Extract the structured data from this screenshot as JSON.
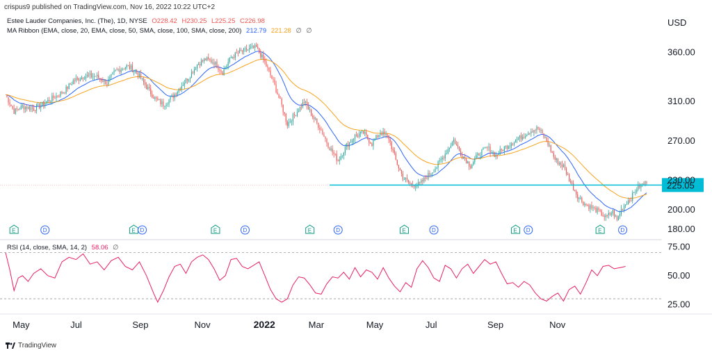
{
  "header": {
    "published": "crispus9 published on TradingView.com, Nov 16, 2022 10:22 UTC+2"
  },
  "legend": {
    "symbol": "Estee Lauder Companies, Inc. (The), 1D, NYSE",
    "o": "O228.42",
    "h": "H230.25",
    "l": "L225.25",
    "c": "C226.98",
    "ma_label": "MA Ribbon (EMA, close, 20, EMA, close, 50, SMA, close, 100, SMA, close, 200)",
    "ma_v1": "212.79",
    "ma_v2": "221.28",
    "ma_v3": "∅",
    "ma_v4": "∅",
    "rsi_label": "RSI (14, close, SMA, 14, 2)",
    "rsi_v1": "58.06",
    "rsi_v2": "∅"
  },
  "footer": {
    "brand": "TradingView"
  },
  "colors": {
    "up": "#26a69a",
    "down": "#ef5350",
    "ema20": "#2962ff",
    "ema50": "#f7a21b",
    "rsi": "#e91e63",
    "support": "#00bcd4",
    "axis_text": "#131722",
    "grid_dash": "#9598a1"
  },
  "chart_data": [
    {
      "type": "candlestick",
      "title": "Estee Lauder Companies, Inc. (The), 1D, NYSE",
      "currency": "USD",
      "ylim": [
        173,
        378
      ],
      "y_ticks": [
        "360.00",
        "310.00",
        "270.00",
        "230.00",
        "200.00",
        "180.00"
      ],
      "y_tick_values": [
        360,
        310,
        270,
        230,
        200,
        180
      ],
      "x_ticks": [
        "May",
        "Jul",
        "Sep",
        "Nov",
        "2022",
        "Mar",
        "May",
        "Jul",
        "Sep",
        "Nov"
      ],
      "x_tick_days": [
        5,
        46,
        90,
        134,
        176,
        215,
        256,
        298,
        342,
        386
      ],
      "x_range_days": [
        0,
        412
      ],
      "price_label": "225.05",
      "price_label_value": 225.05,
      "support_level": 225.05,
      "support_from_day": 230,
      "price_anchors": [
        [
          0,
          317,
          0
        ],
        [
          6,
          300,
          1
        ],
        [
          12,
          305,
          0
        ],
        [
          20,
          303,
          0
        ],
        [
          26,
          307,
          0
        ],
        [
          34,
          314,
          1
        ],
        [
          42,
          321,
          0
        ],
        [
          48,
          331,
          0
        ],
        [
          56,
          336,
          0
        ],
        [
          64,
          336,
          1
        ],
        [
          72,
          329,
          0
        ],
        [
          78,
          341,
          0
        ],
        [
          86,
          346,
          0
        ],
        [
          92,
          342,
          1
        ],
        [
          100,
          325,
          0
        ],
        [
          106,
          313,
          0
        ],
        [
          112,
          307,
          1
        ],
        [
          118,
          314,
          0
        ],
        [
          124,
          325,
          0
        ],
        [
          130,
          335,
          0
        ],
        [
          136,
          348,
          0
        ],
        [
          142,
          353,
          1
        ],
        [
          148,
          350,
          0
        ],
        [
          154,
          340,
          0
        ],
        [
          160,
          355,
          0
        ],
        [
          166,
          360,
          1
        ],
        [
          172,
          363,
          0
        ],
        [
          178,
          365,
          0
        ],
        [
          184,
          350,
          0
        ],
        [
          190,
          330,
          0
        ],
        [
          196,
          306,
          0
        ],
        [
          200,
          287,
          1
        ],
        [
          206,
          298,
          0
        ],
        [
          212,
          310,
          0
        ],
        [
          218,
          295,
          0
        ],
        [
          224,
          281,
          1
        ],
        [
          230,
          263,
          0
        ],
        [
          236,
          250,
          0
        ],
        [
          242,
          265,
          0
        ],
        [
          248,
          275,
          0
        ],
        [
          254,
          278,
          1
        ],
        [
          260,
          267,
          0
        ],
        [
          266,
          279,
          0
        ],
        [
          272,
          273,
          0
        ],
        [
          277,
          250,
          0
        ],
        [
          282,
          233,
          1
        ],
        [
          288,
          225,
          0
        ],
        [
          294,
          226,
          0
        ],
        [
          300,
          235,
          0
        ],
        [
          306,
          244,
          0
        ],
        [
          312,
          257,
          1
        ],
        [
          318,
          271,
          0
        ],
        [
          324,
          255,
          0
        ],
        [
          330,
          245,
          0
        ],
        [
          336,
          257,
          0
        ],
        [
          342,
          263,
          1
        ],
        [
          348,
          255,
          0
        ],
        [
          354,
          263,
          0
        ],
        [
          360,
          269,
          0
        ],
        [
          366,
          274,
          0
        ],
        [
          372,
          280,
          1
        ],
        [
          378,
          283,
          0
        ],
        [
          384,
          270,
          0
        ],
        [
          390,
          251,
          0
        ],
        [
          396,
          244,
          0
        ],
        [
          401,
          228,
          1
        ],
        [
          406,
          214,
          0
        ],
        [
          411,
          206,
          0
        ],
        [
          416,
          202,
          0
        ],
        [
          421,
          198,
          0
        ],
        [
          426,
          192,
          0
        ],
        [
          431,
          198,
          1
        ],
        [
          434,
          189,
          0
        ],
        [
          437,
          200,
          0
        ],
        [
          441,
          208,
          0
        ],
        [
          444,
          212,
          0
        ],
        [
          448,
          222,
          1
        ],
        [
          452,
          226,
          0
        ],
        [
          455,
          227,
          0
        ]
      ],
      "ema_series": [
        "EMA 20",
        "EMA 50"
      ],
      "events": [
        {
          "label": "E",
          "day": 6
        },
        {
          "label": "D",
          "day": 28
        },
        {
          "label": "E",
          "day": 91
        },
        {
          "label": "D",
          "day": 97
        },
        {
          "label": "E",
          "day": 149
        },
        {
          "label": "D",
          "day": 170
        },
        {
          "label": "E",
          "day": 216
        },
        {
          "label": "D",
          "day": 236
        },
        {
          "label": "E",
          "day": 283
        },
        {
          "label": "D",
          "day": 304
        },
        {
          "label": "E",
          "day": 362
        },
        {
          "label": "D",
          "day": 371
        },
        {
          "label": "E",
          "day": 422
        },
        {
          "label": "D",
          "day": 438
        }
      ]
    },
    {
      "type": "line",
      "title": "RSI (14, close, SMA, 14, 2)",
      "ylim": [
        18,
        80
      ],
      "y_ticks": [
        "75.00",
        "50.00",
        "25.00"
      ],
      "y_tick_values": [
        75,
        50,
        25
      ],
      "bands": [
        70,
        30
      ],
      "rsi_anchors": [
        [
          0,
          70
        ],
        [
          3,
          55
        ],
        [
          6,
          37
        ],
        [
          9,
          48
        ],
        [
          12,
          50
        ],
        [
          16,
          45
        ],
        [
          20,
          52
        ],
        [
          25,
          56
        ],
        [
          30,
          50
        ],
        [
          35,
          48
        ],
        [
          40,
          62
        ],
        [
          45,
          66
        ],
        [
          50,
          64
        ],
        [
          55,
          69
        ],
        [
          60,
          60
        ],
        [
          65,
          62
        ],
        [
          70,
          55
        ],
        [
          75,
          63
        ],
        [
          80,
          66
        ],
        [
          85,
          58
        ],
        [
          90,
          55
        ],
        [
          95,
          62
        ],
        [
          100,
          50
        ],
        [
          105,
          35
        ],
        [
          108,
          27
        ],
        [
          112,
          37
        ],
        [
          116,
          49
        ],
        [
          120,
          58
        ],
        [
          124,
          60
        ],
        [
          128,
          52
        ],
        [
          132,
          62
        ],
        [
          136,
          66
        ],
        [
          140,
          68
        ],
        [
          144,
          64
        ],
        [
          148,
          56
        ],
        [
          152,
          46
        ],
        [
          156,
          50
        ],
        [
          160,
          64
        ],
        [
          164,
          65
        ],
        [
          168,
          58
        ],
        [
          172,
          56
        ],
        [
          176,
          59
        ],
        [
          180,
          62
        ],
        [
          184,
          50
        ],
        [
          188,
          38
        ],
        [
          192,
          30
        ],
        [
          196,
          27
        ],
        [
          200,
          30
        ],
        [
          204,
          42
        ],
        [
          208,
          49
        ],
        [
          212,
          48
        ],
        [
          216,
          42
        ],
        [
          220,
          35
        ],
        [
          224,
          34
        ],
        [
          228,
          43
        ],
        [
          232,
          49
        ],
        [
          236,
          48
        ],
        [
          240,
          53
        ],
        [
          244,
          47
        ],
        [
          248,
          57
        ],
        [
          252,
          49
        ],
        [
          256,
          55
        ],
        [
          260,
          53
        ],
        [
          264,
          47
        ],
        [
          268,
          57
        ],
        [
          272,
          48
        ],
        [
          276,
          41
        ],
        [
          280,
          36
        ],
        [
          284,
          44
        ],
        [
          288,
          40
        ],
        [
          292,
          56
        ],
        [
          296,
          63
        ],
        [
          300,
          57
        ],
        [
          304,
          48
        ],
        [
          308,
          45
        ],
        [
          312,
          59
        ],
        [
          316,
          56
        ],
        [
          320,
          48
        ],
        [
          324,
          56
        ],
        [
          328,
          60
        ],
        [
          332,
          52
        ],
        [
          336,
          58
        ],
        [
          340,
          64
        ],
        [
          344,
          60
        ],
        [
          348,
          62
        ],
        [
          352,
          52
        ],
        [
          356,
          43
        ],
        [
          360,
          44
        ],
        [
          364,
          40
        ],
        [
          368,
          45
        ],
        [
          372,
          42
        ],
        [
          376,
          35
        ],
        [
          380,
          30
        ],
        [
          384,
          28
        ],
        [
          388,
          32
        ],
        [
          392,
          35
        ],
        [
          396,
          28
        ],
        [
          400,
          38
        ],
        [
          404,
          41
        ],
        [
          408,
          34
        ],
        [
          412,
          44
        ],
        [
          416,
          55
        ],
        [
          420,
          50
        ],
        [
          424,
          58
        ],
        [
          428,
          59
        ],
        [
          432,
          56
        ],
        [
          436,
          57
        ],
        [
          440,
          58
        ]
      ]
    }
  ],
  "chart_type_label": "candlestick with RSI"
}
